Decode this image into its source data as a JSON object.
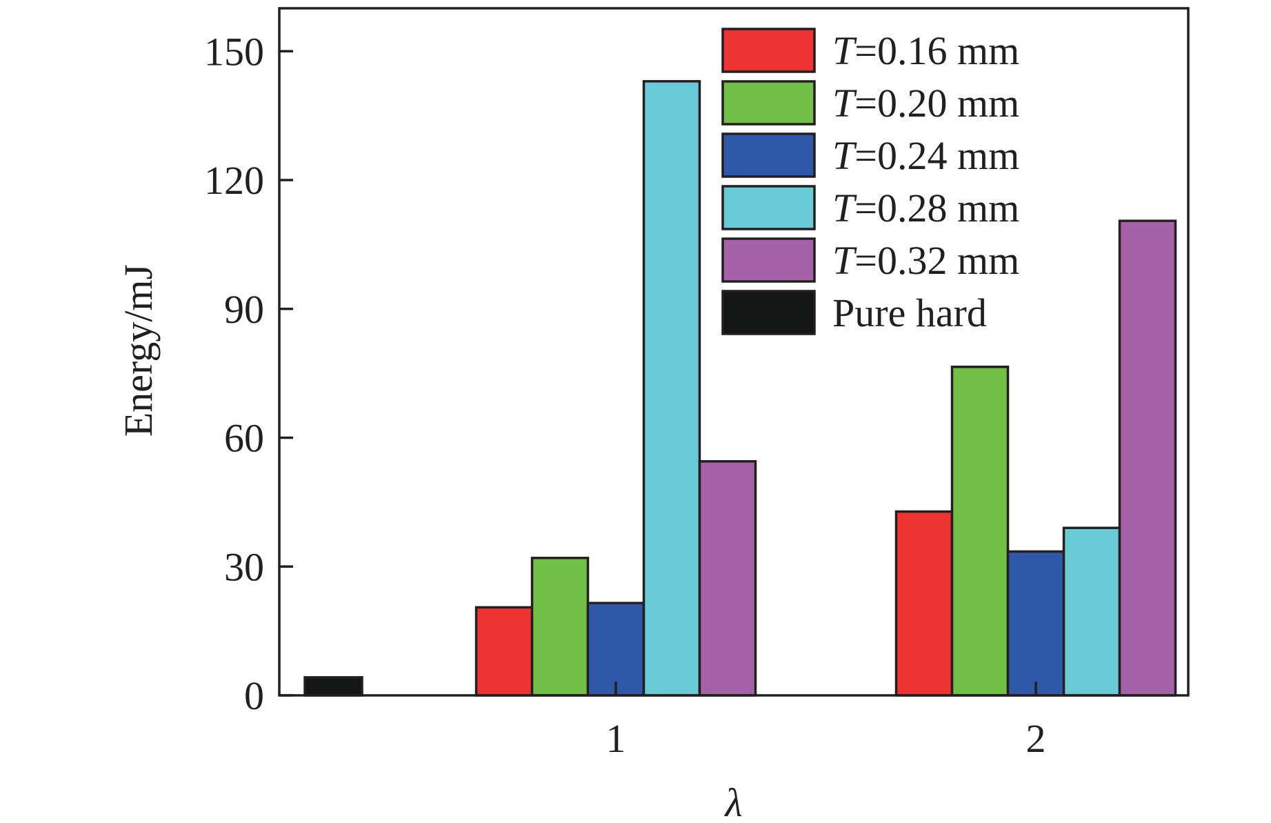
{
  "chart_data": {
    "type": "bar",
    "title": "",
    "xlabel": "λ",
    "ylabel": "Energy/mJ",
    "ylim": [
      0,
      160
    ],
    "yticks": [
      0,
      30,
      60,
      90,
      120,
      150
    ],
    "categories": [
      "1",
      "2"
    ],
    "series": [
      {
        "name_prefix": "T",
        "name_suffix": "=0.16 mm",
        "color": "#ee3333",
        "values": [
          20.5,
          42.8
        ]
      },
      {
        "name_prefix": "T",
        "name_suffix": "=0.20 mm",
        "color": "#72bf48",
        "values": [
          32.0,
          76.5
        ]
      },
      {
        "name_prefix": "T",
        "name_suffix": "=0.24 mm",
        "color": "#2f59a8",
        "values": [
          21.5,
          33.5
        ]
      },
      {
        "name_prefix": "T",
        "name_suffix": "=0.28 mm",
        "color": "#69cbd6",
        "values": [
          143.0,
          39.0
        ]
      },
      {
        "name_prefix": "T",
        "name_suffix": "=0.32 mm",
        "color": "#a561a8",
        "values": [
          54.5,
          110.5
        ]
      }
    ],
    "reference": {
      "name": "Pure hard",
      "color": "#141515",
      "value": 4.2
    },
    "legend_position": "top-right",
    "grid": false
  }
}
